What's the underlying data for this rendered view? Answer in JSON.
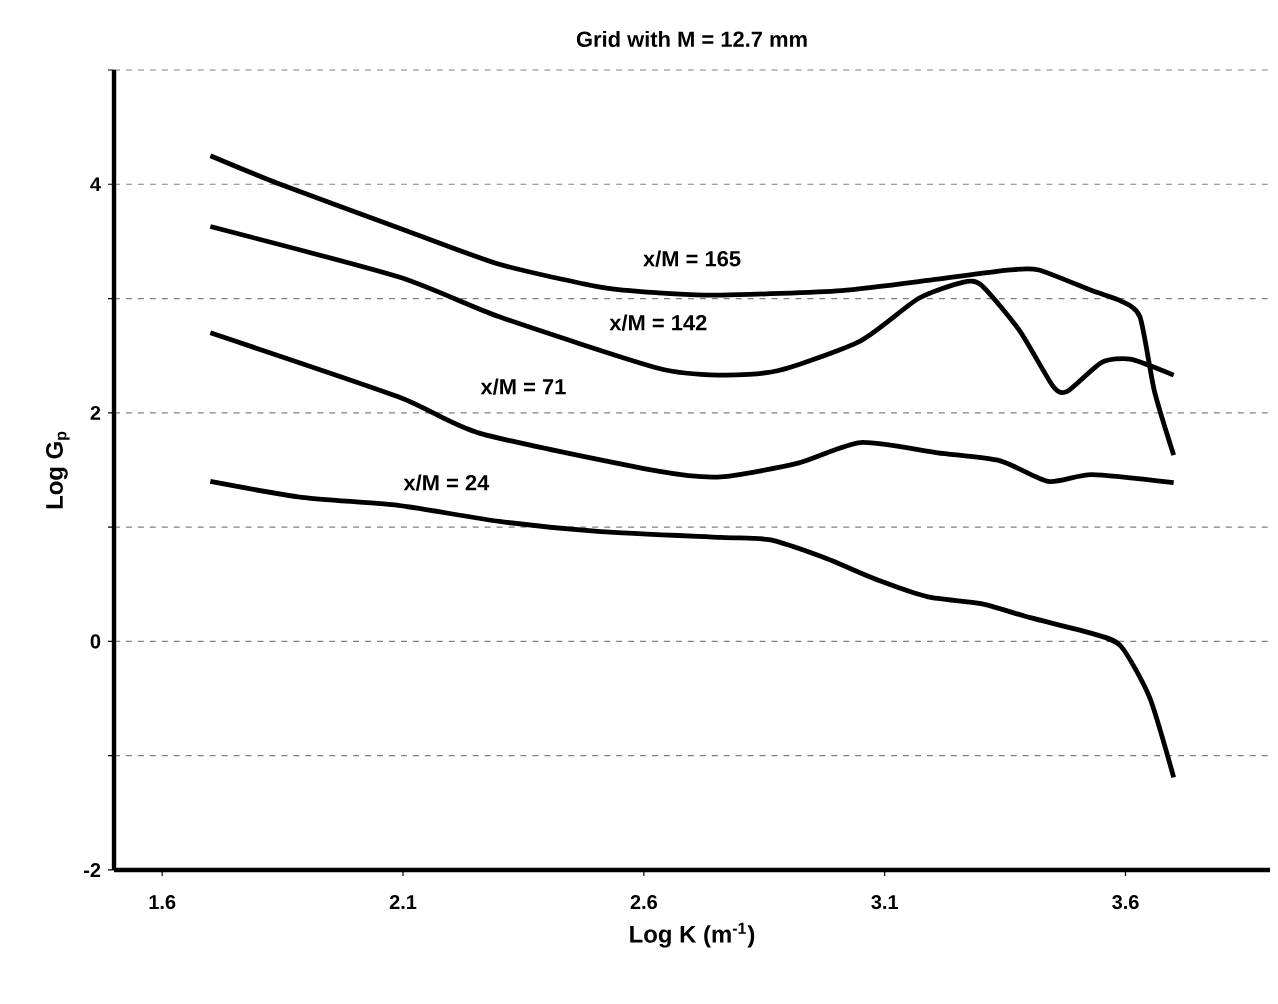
{
  "chart_data": {
    "type": "line",
    "title": "Grid with M = 12.7 mm",
    "xlabel": "Log K (m$^{-1}$)",
    "ylabel": "Log G$_{p}$",
    "xlim": [
      1.5,
      3.9
    ],
    "xticks": [
      1.6,
      2.1,
      2.6,
      3.1,
      3.6
    ],
    "ylim": [
      -2,
      5
    ],
    "yticks": [
      -2,
      {
        "value": -1,
        "label": null
      },
      0,
      {
        "value": 1,
        "label": null
      },
      2,
      {
        "value": 3,
        "label": null
      },
      4,
      {
        "value": 5,
        "label": null
      }
    ],
    "grid": "y",
    "marker": "none",
    "line_style": "solid",
    "series": [
      {
        "name": "x/M = 165",
        "color": "#000000",
        "x": [
          1.7,
          1.845,
          2.09,
          2.3,
          2.51,
          2.63,
          2.76,
          3.01,
          3.21,
          3.36,
          3.42,
          3.53,
          3.59,
          3.63,
          3.66,
          3.7
        ],
        "values": [
          4.25,
          4.0,
          3.62,
          3.3,
          3.1,
          3.05,
          3.03,
          3.07,
          3.17,
          3.25,
          3.25,
          3.07,
          2.98,
          2.84,
          2.19,
          1.63
        ]
      },
      {
        "name": "x/M = 142",
        "color": "#000000",
        "x": [
          1.7,
          2.09,
          2.3,
          2.63,
          2.76,
          2.88,
          3.05,
          3.17,
          3.26,
          3.3,
          3.38,
          3.45,
          3.48,
          3.55,
          3.61,
          3.7
        ],
        "values": [
          3.63,
          3.19,
          2.84,
          2.39,
          2.33,
          2.37,
          2.63,
          3.0,
          3.14,
          3.12,
          2.72,
          2.23,
          2.19,
          2.44,
          2.47,
          2.33
        ]
      },
      {
        "name": "x/M = 71",
        "color": "#000000",
        "x": [
          1.7,
          2.09,
          2.26,
          2.63,
          2.76,
          2.92,
          3.05,
          3.21,
          3.34,
          3.44,
          3.53,
          3.7
        ],
        "values": [
          2.7,
          2.14,
          1.82,
          1.49,
          1.44,
          1.56,
          1.74,
          1.65,
          1.58,
          1.4,
          1.46,
          1.39
        ]
      },
      {
        "name": "x/M = 24",
        "color": "#000000",
        "x": [
          1.7,
          1.89,
          2.09,
          2.3,
          2.51,
          2.76,
          2.86,
          2.97,
          3.09,
          3.19,
          3.3,
          3.4,
          3.53,
          3.59,
          3.65,
          3.7
        ],
        "values": [
          1.4,
          1.26,
          1.19,
          1.05,
          0.96,
          0.91,
          0.89,
          0.74,
          0.53,
          0.39,
          0.33,
          0.21,
          0.07,
          -0.04,
          -0.49,
          -1.19
        ]
      }
    ]
  }
}
